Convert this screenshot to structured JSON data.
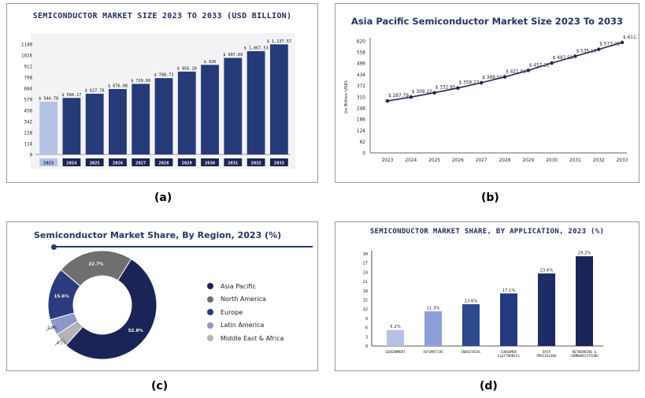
{
  "captions": {
    "a": "(a)",
    "b": "(b)",
    "c": "(c)",
    "d": "(d)"
  },
  "colors": {
    "navy": "#1b2456",
    "dark_blue": "#263a78",
    "light_blue": "#b4c2e4",
    "gray": "#6f6f6f",
    "light_gray": "#b3b3b3",
    "line": "#232c52"
  },
  "chart_data": [
    {
      "id": "a",
      "type": "bar",
      "title": "SEMICONDUCTOR MARKET SIZE 2023 TO 2033 (USD BILLION)",
      "categories": [
        "2023",
        "2024",
        "2025",
        "2026",
        "2027",
        "2028",
        "2029",
        "2030",
        "2031",
        "2032",
        "2033"
      ],
      "values": [
        544.78,
        584.17,
        627.76,
        676.08,
        729.6,
        788.73,
        856.2,
        926,
        997.69,
        1067.53,
        1137.57
      ],
      "labels": [
        "$ 544.78",
        "$ 584.17",
        "$ 627.76",
        "$ 676.08",
        "$ 729.60",
        "$ 788.73",
        "$ 856.20",
        "$ 926",
        "$ 997.69",
        "$ 1,067.53",
        "$ 1,137.57"
      ],
      "yticks": [
        "0",
        "114",
        "228",
        "342",
        "456",
        "570",
        "684",
        "798",
        "912",
        "1026",
        "1140"
      ],
      "ylim": [
        0,
        1140
      ],
      "grid": false
    },
    {
      "id": "b",
      "type": "line",
      "title": "Asia Pacific Semiconductor Market Size 2023 To 2033",
      "ylabel": "(in Billion USD)",
      "x": [
        "2023",
        "2024",
        "2025",
        "2026",
        "2027",
        "2028",
        "2029",
        "2030",
        "2031",
        "2032",
        "2033"
      ],
      "values": [
        287.79,
        309.22,
        332.95,
        359.27,
        388.5,
        421.01,
        457.21,
        497.58,
        535.16,
        573.45,
        611.73
      ],
      "labels": [
        "$ 287.79",
        "$ 309.22",
        "$ 332.95",
        "$ 359.27",
        "$ 388.50",
        "$ 421.01",
        "$ 457.21",
        "$ 497.58",
        "$ 535.16",
        "$ 573.45",
        "$ 611.73"
      ],
      "yticks": [
        "0",
        "62",
        "124",
        "186",
        "248",
        "310",
        "372",
        "434",
        "496",
        "558",
        "620"
      ],
      "ylim": [
        0,
        620
      ],
      "grid": false
    },
    {
      "id": "c",
      "type": "pie",
      "title": "Semiconductor Market Share, By Region, 2023 (%)",
      "slices": [
        {
          "name": "Asia Pacific",
          "value": 52.8,
          "label": "52.8%"
        },
        {
          "name": "Middle East & Africa",
          "value": 4.1,
          "label": "4.1%"
        },
        {
          "name": "Latin America",
          "value": 4.8,
          "label": "4.8%"
        },
        {
          "name": "Europe",
          "value": 15.6,
          "label": "15.6%"
        },
        {
          "name": "North America",
          "value": 22.7,
          "label": "22.7%"
        }
      ],
      "legend": [
        "Asia Pacific",
        "North America",
        "Europe",
        "Latin America",
        "Middle East & Africa"
      ],
      "legend_position": "right"
    },
    {
      "id": "d",
      "type": "bar",
      "title": "SEMICONDUCTOR MARKET SHARE, BY APPLICATION, 2023 (%)",
      "categories": [
        "GOVERNMENT",
        "AUTOMOTIVE",
        "INDUSTRIAL",
        "CONSUMER ELECTRONICS",
        "DATA PROCESSING",
        "NETWORKING & COMMUNICATIONS"
      ],
      "values": [
        5.2,
        11.3,
        13.6,
        17.1,
        23.6,
        29.2
      ],
      "labels": [
        "5.2%",
        "11.3%",
        "13.6%",
        "17.1%",
        "23.6%",
        "29.2%"
      ],
      "yticks": [
        "0",
        "3",
        "6",
        "9",
        "12",
        "15",
        "18",
        "21",
        "24",
        "27",
        "30"
      ],
      "ylim": [
        0,
        30
      ],
      "grid": false
    }
  ]
}
